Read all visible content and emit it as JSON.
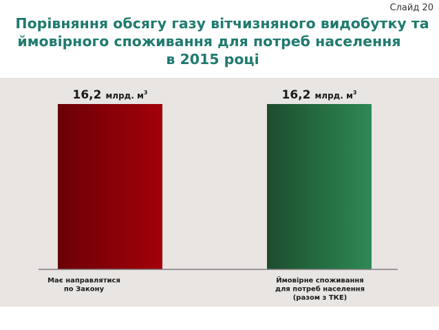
{
  "slide_label": "Слайд 20",
  "title_lines": [
    "Порівняння обсягу газу вітчизняного видобутку та",
    "ймовірного споживання для потреб населення",
    "в 2015 році"
  ],
  "chart_data": {
    "type": "bar",
    "categories": [
      [
        "Має направлятися",
        "по Закону"
      ],
      [
        "Ймовірне споживання",
        "для потреб населення",
        "(разом з ТКЕ)"
      ]
    ],
    "values": [
      16.2,
      16.2
    ],
    "value_labels": [
      {
        "number": "16,2",
        "unit": "млрд. м",
        "sup": "3"
      },
      {
        "number": "16,2",
        "unit": "млрд. м",
        "sup": "3"
      }
    ],
    "ylim": [
      0,
      16.2
    ],
    "grid": false,
    "colors": [
      {
        "dark": "#6b0007",
        "light": "#a30008"
      },
      {
        "dark": "#1c4d2d",
        "light": "#2e8955"
      }
    ]
  }
}
